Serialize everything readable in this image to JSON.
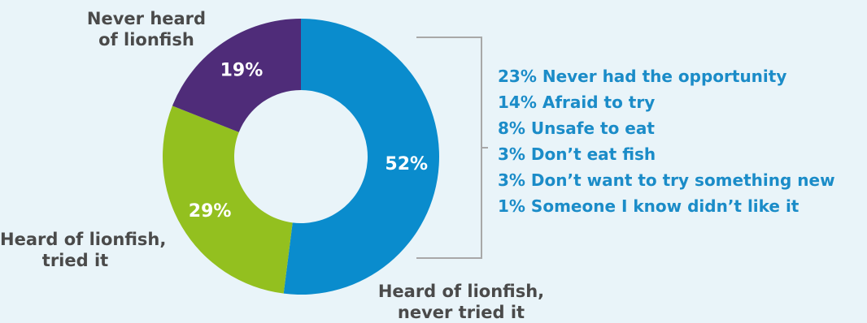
{
  "chart_data": {
    "type": "pie",
    "style": "donut",
    "slices": [
      {
        "label_lines": [
          "Heard of lionfish,",
          "never tried it"
        ],
        "value": 52,
        "value_label": "52%",
        "color": "#0a8ccd"
      },
      {
        "label_lines": [
          "Heard of lionfish,",
          "tried it"
        ],
        "value": 29,
        "value_label": "29%",
        "color": "#93c01f"
      },
      {
        "label_lines": [
          "Never heard",
          "of lionfish"
        ],
        "value": 19,
        "value_label": "19%",
        "color": "#4f2c79"
      }
    ],
    "breakdown_of": "Heard of lionfish, never tried it",
    "breakdown": [
      "23% Never had the opportunity",
      "14% Afraid to try",
      "8% Unsafe to eat",
      "3% Don’t eat fish",
      "3% Don’t want to try something new",
      "1% Someone I know didn’t like it"
    ],
    "colors": {
      "background": "#e9f4f9",
      "category_text": "#4a4a4a",
      "breakdown_text": "#1b8cc8",
      "bracket": "#a8a8a8"
    }
  }
}
